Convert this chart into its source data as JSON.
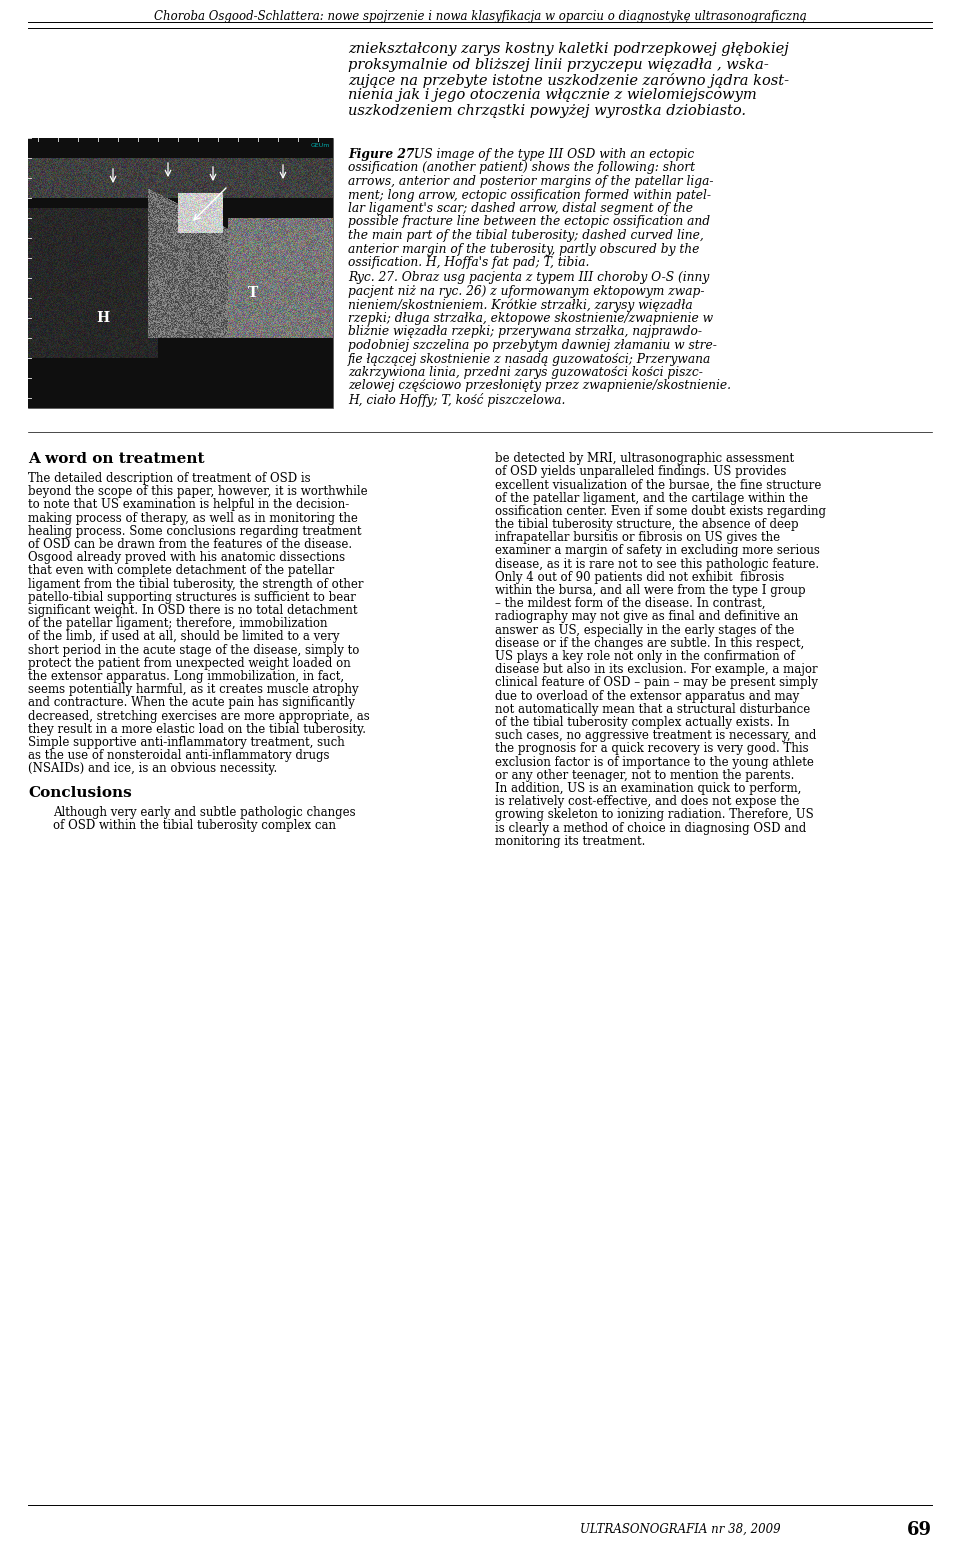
{
  "page_background": "#ffffff",
  "header_text": "Choroba Osgood-Schlattera: nowe spojrzenie i nowa klasyfikacja w oparciu o diagnostykę ultrasonograficzną",
  "top_right_lines": [
    "zniekształcony zarys kostny kaletki podrzepkowej głębokiej",
    "proksymalnie od bliższej linii przyczepu więzadła , wska-",
    "zujące na przebyte istotne uszkodzenie zarówno jądra kost-",
    "nienia jak i jego otoczenia włącznie z wielomiejscowym",
    "uszkodzeniem chrząstki powyżej wyrostka dziobiasto."
  ],
  "fig_cap_en_lines": [
    "Figure 27. US image of the type III OSD with an ectopic",
    "ossification (another patient) shows the following: short",
    "arrows, anterior and posterior margins of the patellar liga-",
    "ment; long arrow, ectopic ossification formed within patel-",
    "lar ligament's scar; dashed arrow, distal segment of the",
    "possible fracture line between the ectopic ossification and",
    "the main part of the tibial tuberosity; dashed curved line,",
    "anterior margin of the tuberosity, partly obscured by the",
    "ossification. H, Hoffa's fat pad; T, tibia."
  ],
  "fig_cap_pl_lines": [
    "Ryc. 27. Obraz usg pacjenta z typem III choroby O-S (inny",
    "pacjent niż na ryc. 26) z uformowanym ektopowym zwap-",
    "nieniem/skostnieniem. Krótkie strzałki, zarysy więzadła",
    "rzepki; długa strzałka, ektopowe skostnienie/zwapnienie w",
    "bliżnie więzadła rzepki; przerywana strzałka, najprawdo-",
    "podobniej szczelina po przebytym dawniej złamaniu w stre-",
    "fie łączącej skostnienie z nasadą guzowatości; Przerywana",
    "zakrzywiona linia, przedni zarys guzowatości kości piszc-",
    "zelowej częściowo przesłonięty przez zwapnienie/skostnienie.",
    "H, ciało Hoffy; T, kość piszczelowa."
  ],
  "section_title_treatment": "A word on treatment",
  "left_col_lines": [
    "The detailed description of treatment of OSD is",
    "beyond the scope of this paper, however, it is worthwhile",
    "to note that US examination is helpful in the decision-",
    "making process of therapy, as well as in monitoring the",
    "healing process. Some conclusions regarding treatment",
    "of OSD can be drawn from the features of the disease.",
    "Osgood already proved with his anatomic dissections",
    "that even with complete detachment of the patellar",
    "ligament from the tibial tuberosity, the strength of other",
    "patello-tibial supporting structures is sufficient to bear",
    "significant weight. In OSD there is no total detachment",
    "of the patellar ligament; therefore, immobilization",
    "of the limb, if used at all, should be limited to a very",
    "short period in the acute stage of the disease, simply to",
    "protect the patient from unexpected weight loaded on",
    "the extensor apparatus. Long immobilization, in fact,",
    "seems potentially harmful, as it creates muscle atrophy",
    "and contracture. When the acute pain has significantly",
    "decreased, stretching exercises are more appropriate, as",
    "they result in a more elastic load on the tibial tuberosity.",
    "Simple supportive anti-inflammatory treatment, such",
    "as the use of nonsteroidal anti-inflammatory drugs",
    "(NSAIDs) and ice, is an obvious necessity."
  ],
  "section_title_conclusions": "Conclusions",
  "conclusions_lines": [
    "Although very early and subtle pathologic changes",
    "of OSD within the tibial tuberosity complex can"
  ],
  "right_col_lines": [
    "be detected by MRI, ultrasonographic assessment",
    "of OSD yields unparalleled findings. US provides",
    "excellent visualization of the bursae, the fine structure",
    "of the patellar ligament, and the cartilage within the",
    "ossification center. Even if some doubt exists regarding",
    "the tibial tuberosity structure, the absence of deep",
    "infrapatellar bursitis or fibrosis on US gives the",
    "examiner a margin of safety in excluding more serious",
    "disease, as it is rare not to see this pathologic feature.",
    "Only 4 out of 90 patients did not exhibit  fibrosis",
    "within the bursa, and all were from the type I group",
    "– the mildest form of the disease. In contrast,",
    "radiography may not give as final and definitive an",
    "answer as US, especially in the early stages of the",
    "disease or if the changes are subtle. In this respect,",
    "US plays a key role not only in the confirmation of",
    "disease but also in its exclusion. For example, a major",
    "clinical feature of OSD – pain – may be present simply",
    "due to overload of the extensor apparatus and may",
    "not automatically mean that a structural disturbance",
    "of the tibial tuberosity complex actually exists. In",
    "such cases, no aggressive treatment is necessary, and",
    "the prognosis for a quick recovery is very good. This",
    "exclusion factor is of importance to the young athlete",
    "or any other teenager, not to mention the parents.",
    "In addition, US is an examination quick to perform,",
    "is relatively cost-effective, and does not expose the",
    "growing skeleton to ionizing radiation. Therefore, US",
    "is clearly a method of choice in diagnosing OSD and",
    "monitoring its treatment."
  ],
  "footer_journal": "ULTRASONOGRAFIA nr 38, 2009",
  "footer_page": "69"
}
